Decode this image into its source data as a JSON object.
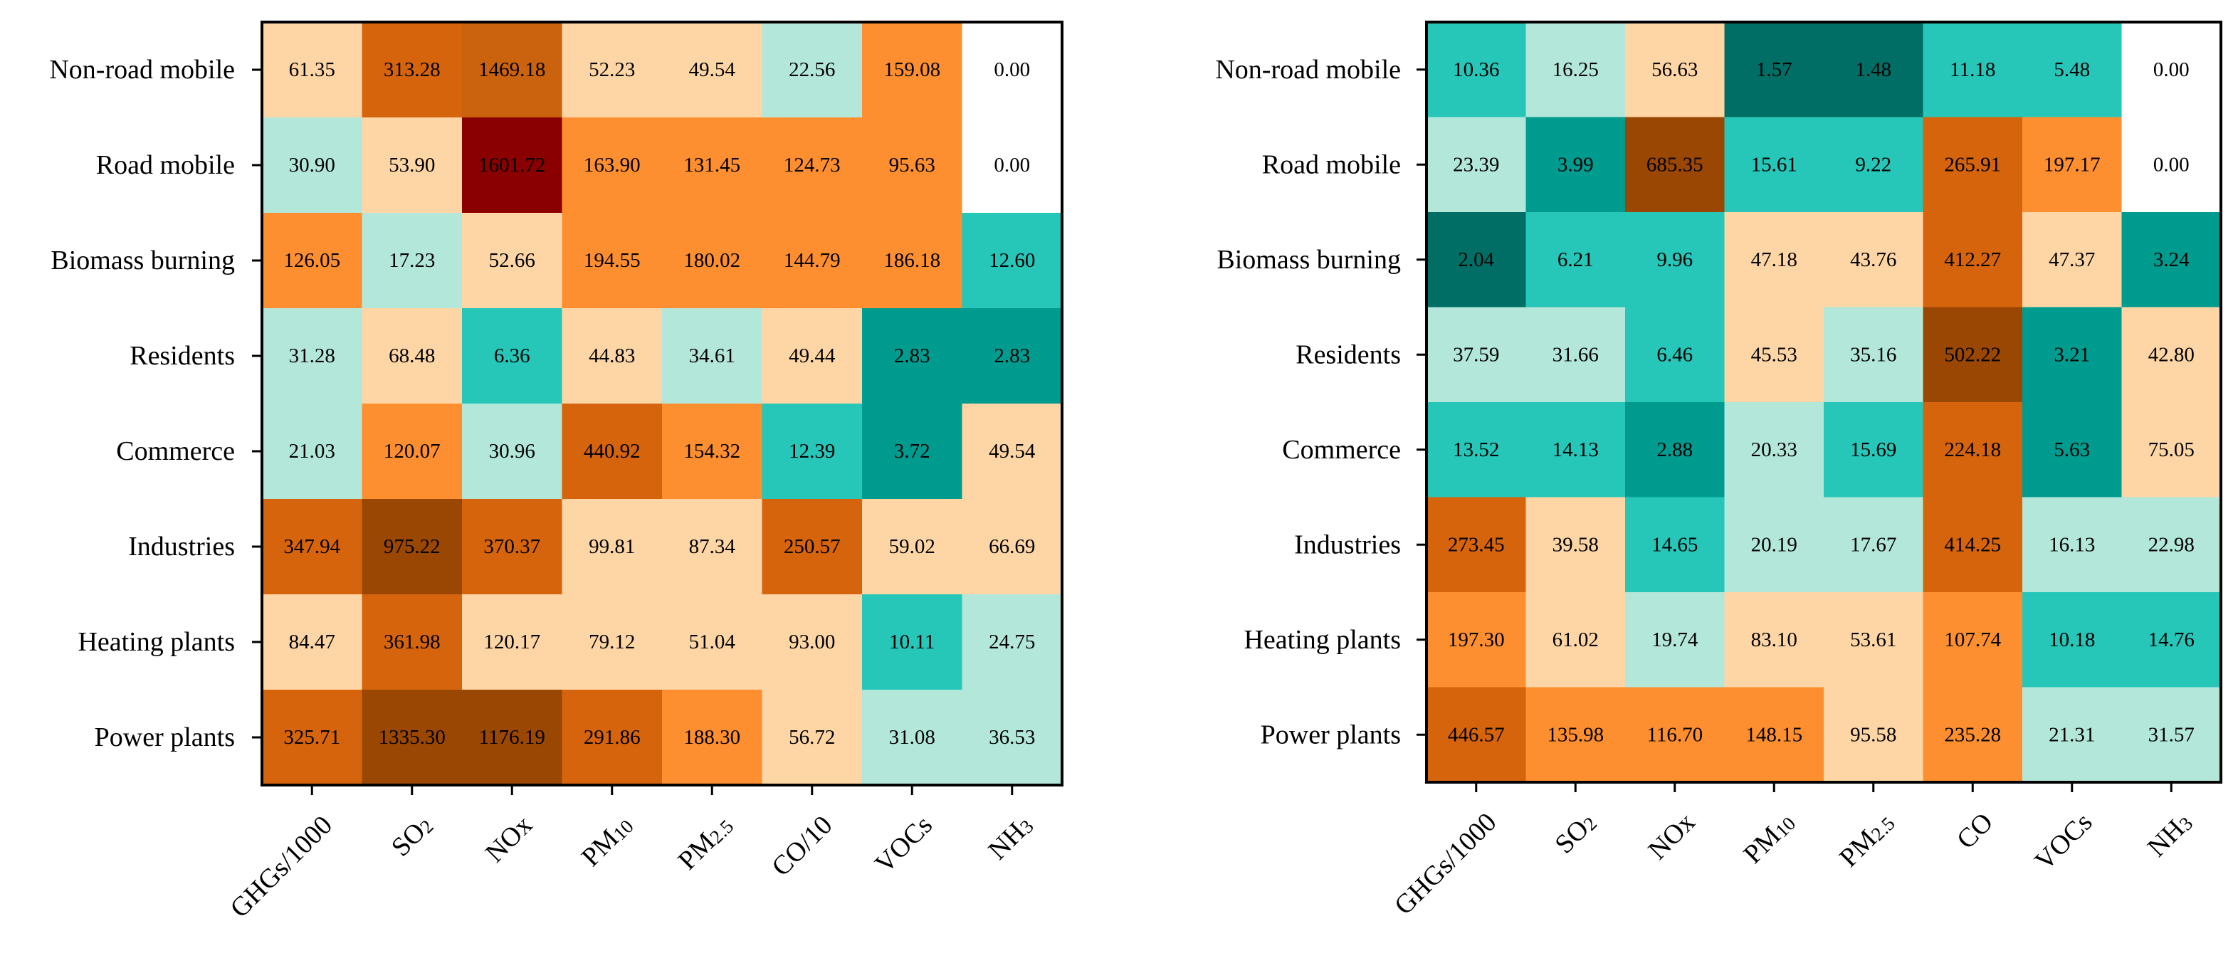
{
  "chart_data": [
    {
      "type": "heatmap",
      "name": "left",
      "rows": [
        "Non-road mobile",
        "Road mobile",
        "Biomass burning",
        "Residents",
        "Commerce",
        "Industries",
        "Heating plants",
        "Power plants"
      ],
      "columns": [
        {
          "base": "GHGs/1000",
          "sub": ""
        },
        {
          "base": "SO",
          "sub": "2"
        },
        {
          "base": "NOx",
          "sub": ""
        },
        {
          "base": "PM",
          "sub": "10"
        },
        {
          "base": "PM",
          "sub": "2.5"
        },
        {
          "base": "CO/10",
          "sub": ""
        },
        {
          "base": "VOCs",
          "sub": ""
        },
        {
          "base": "NH",
          "sub": "3"
        }
      ],
      "values": [
        [
          61.35,
          313.28,
          1469.18,
          52.23,
          49.54,
          22.56,
          159.08,
          0.0
        ],
        [
          30.9,
          53.9,
          1601.72,
          163.9,
          131.45,
          124.73,
          95.63,
          0.0
        ],
        [
          126.05,
          17.23,
          52.66,
          194.55,
          180.02,
          144.79,
          186.18,
          12.6
        ],
        [
          31.28,
          68.48,
          6.36,
          44.83,
          34.61,
          49.44,
          2.83,
          2.83
        ],
        [
          21.03,
          120.07,
          30.96,
          440.92,
          154.32,
          12.39,
          3.72,
          49.54
        ],
        [
          347.94,
          975.22,
          370.37,
          99.81,
          87.34,
          250.57,
          59.02,
          66.69
        ],
        [
          84.47,
          361.98,
          120.17,
          79.12,
          51.04,
          93.0,
          10.11,
          24.75
        ],
        [
          325.71,
          1335.3,
          1176.19,
          291.86,
          188.3,
          56.72,
          31.08,
          36.53
        ]
      ],
      "labels": [
        [
          "61.35",
          "313.28",
          "1469.18",
          "52.23",
          "49.54",
          "22.56",
          "159.08",
          "0.00"
        ],
        [
          "30.90",
          "53.90",
          "1601.72",
          "163.90",
          "131.45",
          "124.73",
          "95.63",
          "0.00"
        ],
        [
          "126.05",
          "17.23",
          "52.66",
          "194.55",
          "180.02",
          "144.79",
          "186.18",
          "12.60"
        ],
        [
          "31.28",
          "68.48",
          "6.36",
          "44.83",
          "34.61",
          "49.44",
          "2.83",
          "2.83"
        ],
        [
          "21.03",
          "120.07",
          "30.96",
          "440.92",
          "154.32",
          "12.39",
          "3.72",
          "49.54"
        ],
        [
          "347.94",
          "975.22",
          "370.37",
          "99.81",
          "87.34",
          "250.57",
          "59.02",
          "66.69"
        ],
        [
          "84.47",
          "361.98",
          "120.17",
          "79.12",
          "51.04",
          "93.00",
          "10.11",
          "24.75"
        ],
        [
          "325.71",
          "1335.30",
          "1176.19",
          "291.86",
          "188.30",
          "56.72",
          "31.08",
          "36.53"
        ]
      ],
      "color_levels": [
        [
          2,
          4,
          6,
          2,
          2,
          1,
          3,
          0
        ],
        [
          1,
          2,
          7,
          3,
          3,
          3,
          3,
          0
        ],
        [
          3,
          1,
          2,
          3,
          3,
          3,
          3,
          -2
        ],
        [
          1,
          2,
          -2,
          2,
          1,
          2,
          -3,
          -3
        ],
        [
          1,
          3,
          1,
          4,
          3,
          -2,
          -3,
          2
        ],
        [
          4,
          5,
          4,
          2,
          2,
          4,
          2,
          2
        ],
        [
          2,
          4,
          2,
          2,
          2,
          2,
          -2,
          1
        ],
        [
          4,
          5,
          5,
          4,
          3,
          2,
          1,
          1
        ]
      ]
    },
    {
      "type": "heatmap",
      "name": "right",
      "rows": [
        "Non-road mobile",
        "Road mobile",
        "Biomass burning",
        "Residents",
        "Commerce",
        "Industries",
        "Heating plants",
        "Power plants"
      ],
      "columns": [
        {
          "base": "GHGs/1000",
          "sub": ""
        },
        {
          "base": "SO",
          "sub": "2"
        },
        {
          "base": "NOx",
          "sub": ""
        },
        {
          "base": "PM",
          "sub": "10"
        },
        {
          "base": "PM",
          "sub": "2.5"
        },
        {
          "base": "CO",
          "sub": ""
        },
        {
          "base": "VOCs",
          "sub": ""
        },
        {
          "base": "NH",
          "sub": "3"
        }
      ],
      "values": [
        [
          10.36,
          16.25,
          56.63,
          1.57,
          1.48,
          11.18,
          5.48,
          0.0
        ],
        [
          23.39,
          3.99,
          685.35,
          15.61,
          9.22,
          265.91,
          197.17,
          0.0
        ],
        [
          2.04,
          6.21,
          9.96,
          47.18,
          43.76,
          412.27,
          47.37,
          3.24
        ],
        [
          37.59,
          31.66,
          6.46,
          45.53,
          35.16,
          502.22,
          3.21,
          42.8
        ],
        [
          13.52,
          14.13,
          2.88,
          20.33,
          15.69,
          224.18,
          5.63,
          75.05
        ],
        [
          273.45,
          39.58,
          14.65,
          20.19,
          17.67,
          414.25,
          16.13,
          22.98
        ],
        [
          197.3,
          61.02,
          19.74,
          83.1,
          53.61,
          107.74,
          10.18,
          14.76
        ],
        [
          446.57,
          135.98,
          116.7,
          148.15,
          95.58,
          235.28,
          21.31,
          31.57
        ]
      ],
      "labels": [
        [
          "10.36",
          "16.25",
          "56.63",
          "1.57",
          "1.48",
          "11.18",
          "5.48",
          "0.00"
        ],
        [
          "23.39",
          "3.99",
          "685.35",
          "15.61",
          "9.22",
          "265.91",
          "197.17",
          "0.00"
        ],
        [
          "2.04",
          "6.21",
          "9.96",
          "47.18",
          "43.76",
          "412.27",
          "47.37",
          "3.24"
        ],
        [
          "37.59",
          "31.66",
          "6.46",
          "45.53",
          "35.16",
          "502.22",
          "3.21",
          "42.80"
        ],
        [
          "13.52",
          "14.13",
          "2.88",
          "20.33",
          "15.69",
          "224.18",
          "5.63",
          "75.05"
        ],
        [
          "273.45",
          "39.58",
          "14.65",
          "20.19",
          "17.67",
          "414.25",
          "16.13",
          "22.98"
        ],
        [
          "197.30",
          "61.02",
          "19.74",
          "83.10",
          "53.61",
          "107.74",
          "10.18",
          "14.76"
        ],
        [
          "446.57",
          "135.98",
          "116.70",
          "148.15",
          "95.58",
          "235.28",
          "21.31",
          "31.57"
        ]
      ],
      "color_levels": [
        [
          -2,
          1,
          2,
          -4,
          -4,
          -2,
          -2,
          0
        ],
        [
          1,
          -3,
          5,
          -2,
          -2,
          4,
          3,
          0
        ],
        [
          -4,
          -2,
          -2,
          2,
          2,
          4,
          2,
          -3
        ],
        [
          1,
          1,
          -2,
          2,
          1,
          5,
          -3,
          2
        ],
        [
          -2,
          -2,
          -3,
          1,
          -2,
          4,
          -3,
          2
        ],
        [
          4,
          2,
          -2,
          1,
          1,
          4,
          1,
          1
        ],
        [
          3,
          2,
          1,
          2,
          2,
          3,
          -2,
          -2
        ],
        [
          4,
          3,
          3,
          3,
          2,
          3,
          1,
          1
        ]
      ]
    }
  ],
  "palette": {
    "-4": "#006e65",
    "-3": "#009b8f",
    "-2": "#26c6b8",
    "1": "#b3e7da",
    "0": "#ffffff",
    "2": "#fed6a6",
    "3": "#fd8f30",
    "4": "#d5640c",
    "5": "#9b4704",
    "6": "#cb620d",
    "7": "#8a0000"
  },
  "colors": {
    "frame": "#000000",
    "text": "#000000"
  }
}
